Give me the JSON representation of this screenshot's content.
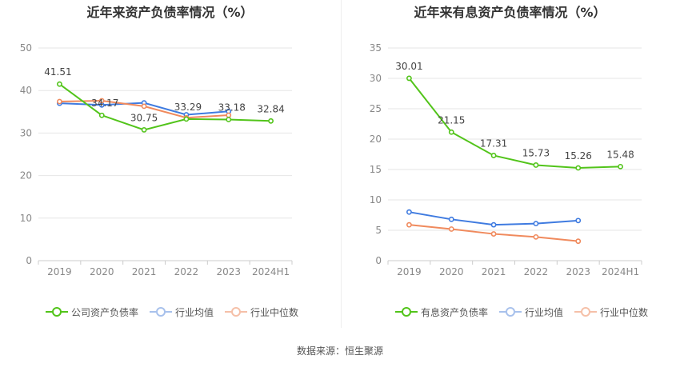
{
  "chart_data": [
    {
      "type": "line",
      "title": "近年来资产负债率情况（%）",
      "categories": [
        "2019",
        "2020",
        "2021",
        "2022",
        "2023",
        "2024H1"
      ],
      "ylim": [
        0,
        50
      ],
      "yticks": [
        0,
        10,
        20,
        30,
        40,
        50
      ],
      "grid": true,
      "legend_position": "bottom",
      "series": [
        {
          "name": "公司资产负债率",
          "color": "#52c41a",
          "values": [
            41.51,
            34.17,
            30.75,
            33.29,
            33.18,
            32.84
          ],
          "labels": [
            "41.51",
            "34.17",
            "30.75",
            "33.29",
            "33.18",
            "32.84"
          ]
        },
        {
          "name": "行业均值",
          "color": "#3f7be0",
          "values": [
            37.0,
            36.6,
            37.1,
            34.3,
            35.1,
            null
          ]
        },
        {
          "name": "行业中位数",
          "color": "#f08a5d",
          "values": [
            37.4,
            37.6,
            36.3,
            33.6,
            34.2,
            null
          ]
        }
      ]
    },
    {
      "type": "line",
      "title": "近年来有息资产负债率情况（%）",
      "categories": [
        "2019",
        "2020",
        "2021",
        "2022",
        "2023",
        "2024H1"
      ],
      "ylim": [
        0,
        35
      ],
      "yticks": [
        0,
        5,
        10,
        15,
        20,
        25,
        30,
        35
      ],
      "grid": true,
      "legend_position": "bottom",
      "series": [
        {
          "name": "有息资产负债率",
          "color": "#52c41a",
          "values": [
            30.01,
            21.15,
            17.31,
            15.73,
            15.26,
            15.48
          ],
          "labels": [
            "30.01",
            "21.15",
            "17.31",
            "15.73",
            "15.26",
            "15.48"
          ]
        },
        {
          "name": "行业均值",
          "color": "#3f7be0",
          "values": [
            8.0,
            6.8,
            5.9,
            6.1,
            6.6,
            null
          ]
        },
        {
          "name": "行业中位数",
          "color": "#f08a5d",
          "values": [
            5.9,
            5.2,
            4.4,
            3.9,
            3.2,
            null
          ]
        }
      ]
    }
  ],
  "source_text": "数据来源：恒生聚源"
}
